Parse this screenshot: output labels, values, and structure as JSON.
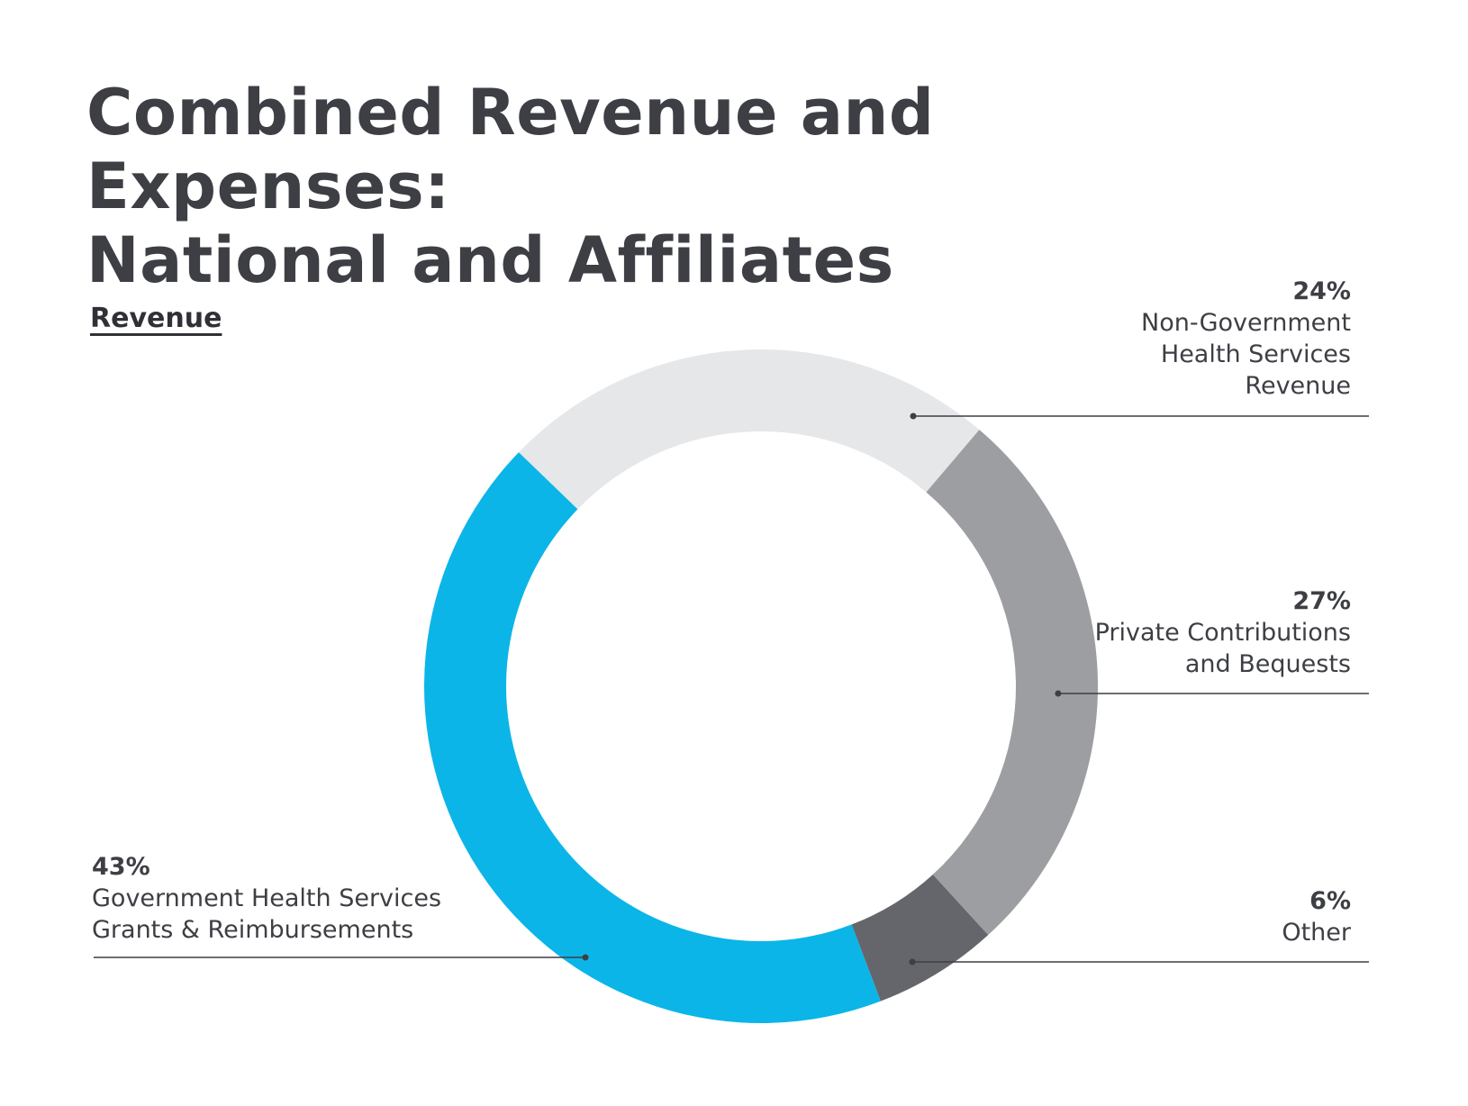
{
  "title": "Combined Revenue and Expenses:\nNational and Affiliates",
  "chart_data": {
    "type": "pie",
    "style": "donut",
    "subtitle": "Revenue",
    "categories": [
      "Non-Government\nHealth Services\nRevenue",
      "Private Contributions\nand Bequests",
      "Other",
      "Government Health Services\nGrants & Reimbursements"
    ],
    "values": [
      24,
      27,
      6,
      43
    ],
    "value_labels": [
      "24%",
      "27%",
      "6%",
      "43%"
    ],
    "colors": [
      "#e6e7e8",
      "#9d9ea1",
      "#65666b",
      "#0bb5e8"
    ],
    "legend": "callouts"
  }
}
